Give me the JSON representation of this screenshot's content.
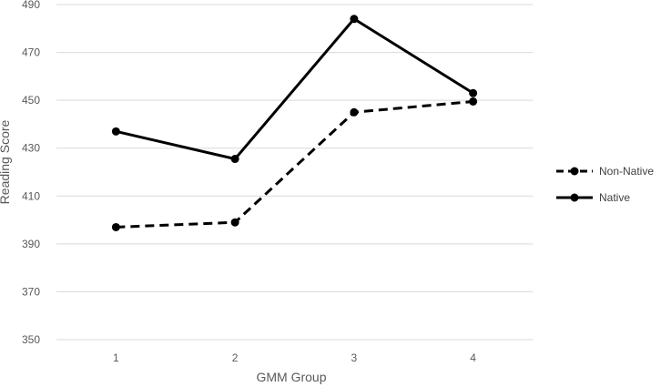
{
  "chart_data": {
    "type": "line",
    "xlabel": "GMM Group",
    "ylabel": "Reading Score",
    "categories": [
      "1",
      "2",
      "3",
      "4"
    ],
    "ylim": [
      350,
      490
    ],
    "yticks": [
      "350",
      "370",
      "390",
      "410",
      "430",
      "450",
      "470",
      "490"
    ],
    "grid": "horizontal",
    "legend_position": "right",
    "series": [
      {
        "name": "Non-Native",
        "values": [
          397,
          399,
          445,
          449.5
        ],
        "style": "dashed",
        "color": "#000000"
      },
      {
        "name": "Native",
        "values": [
          437,
          425.5,
          484,
          453
        ],
        "style": "solid",
        "color": "#000000"
      }
    ]
  }
}
